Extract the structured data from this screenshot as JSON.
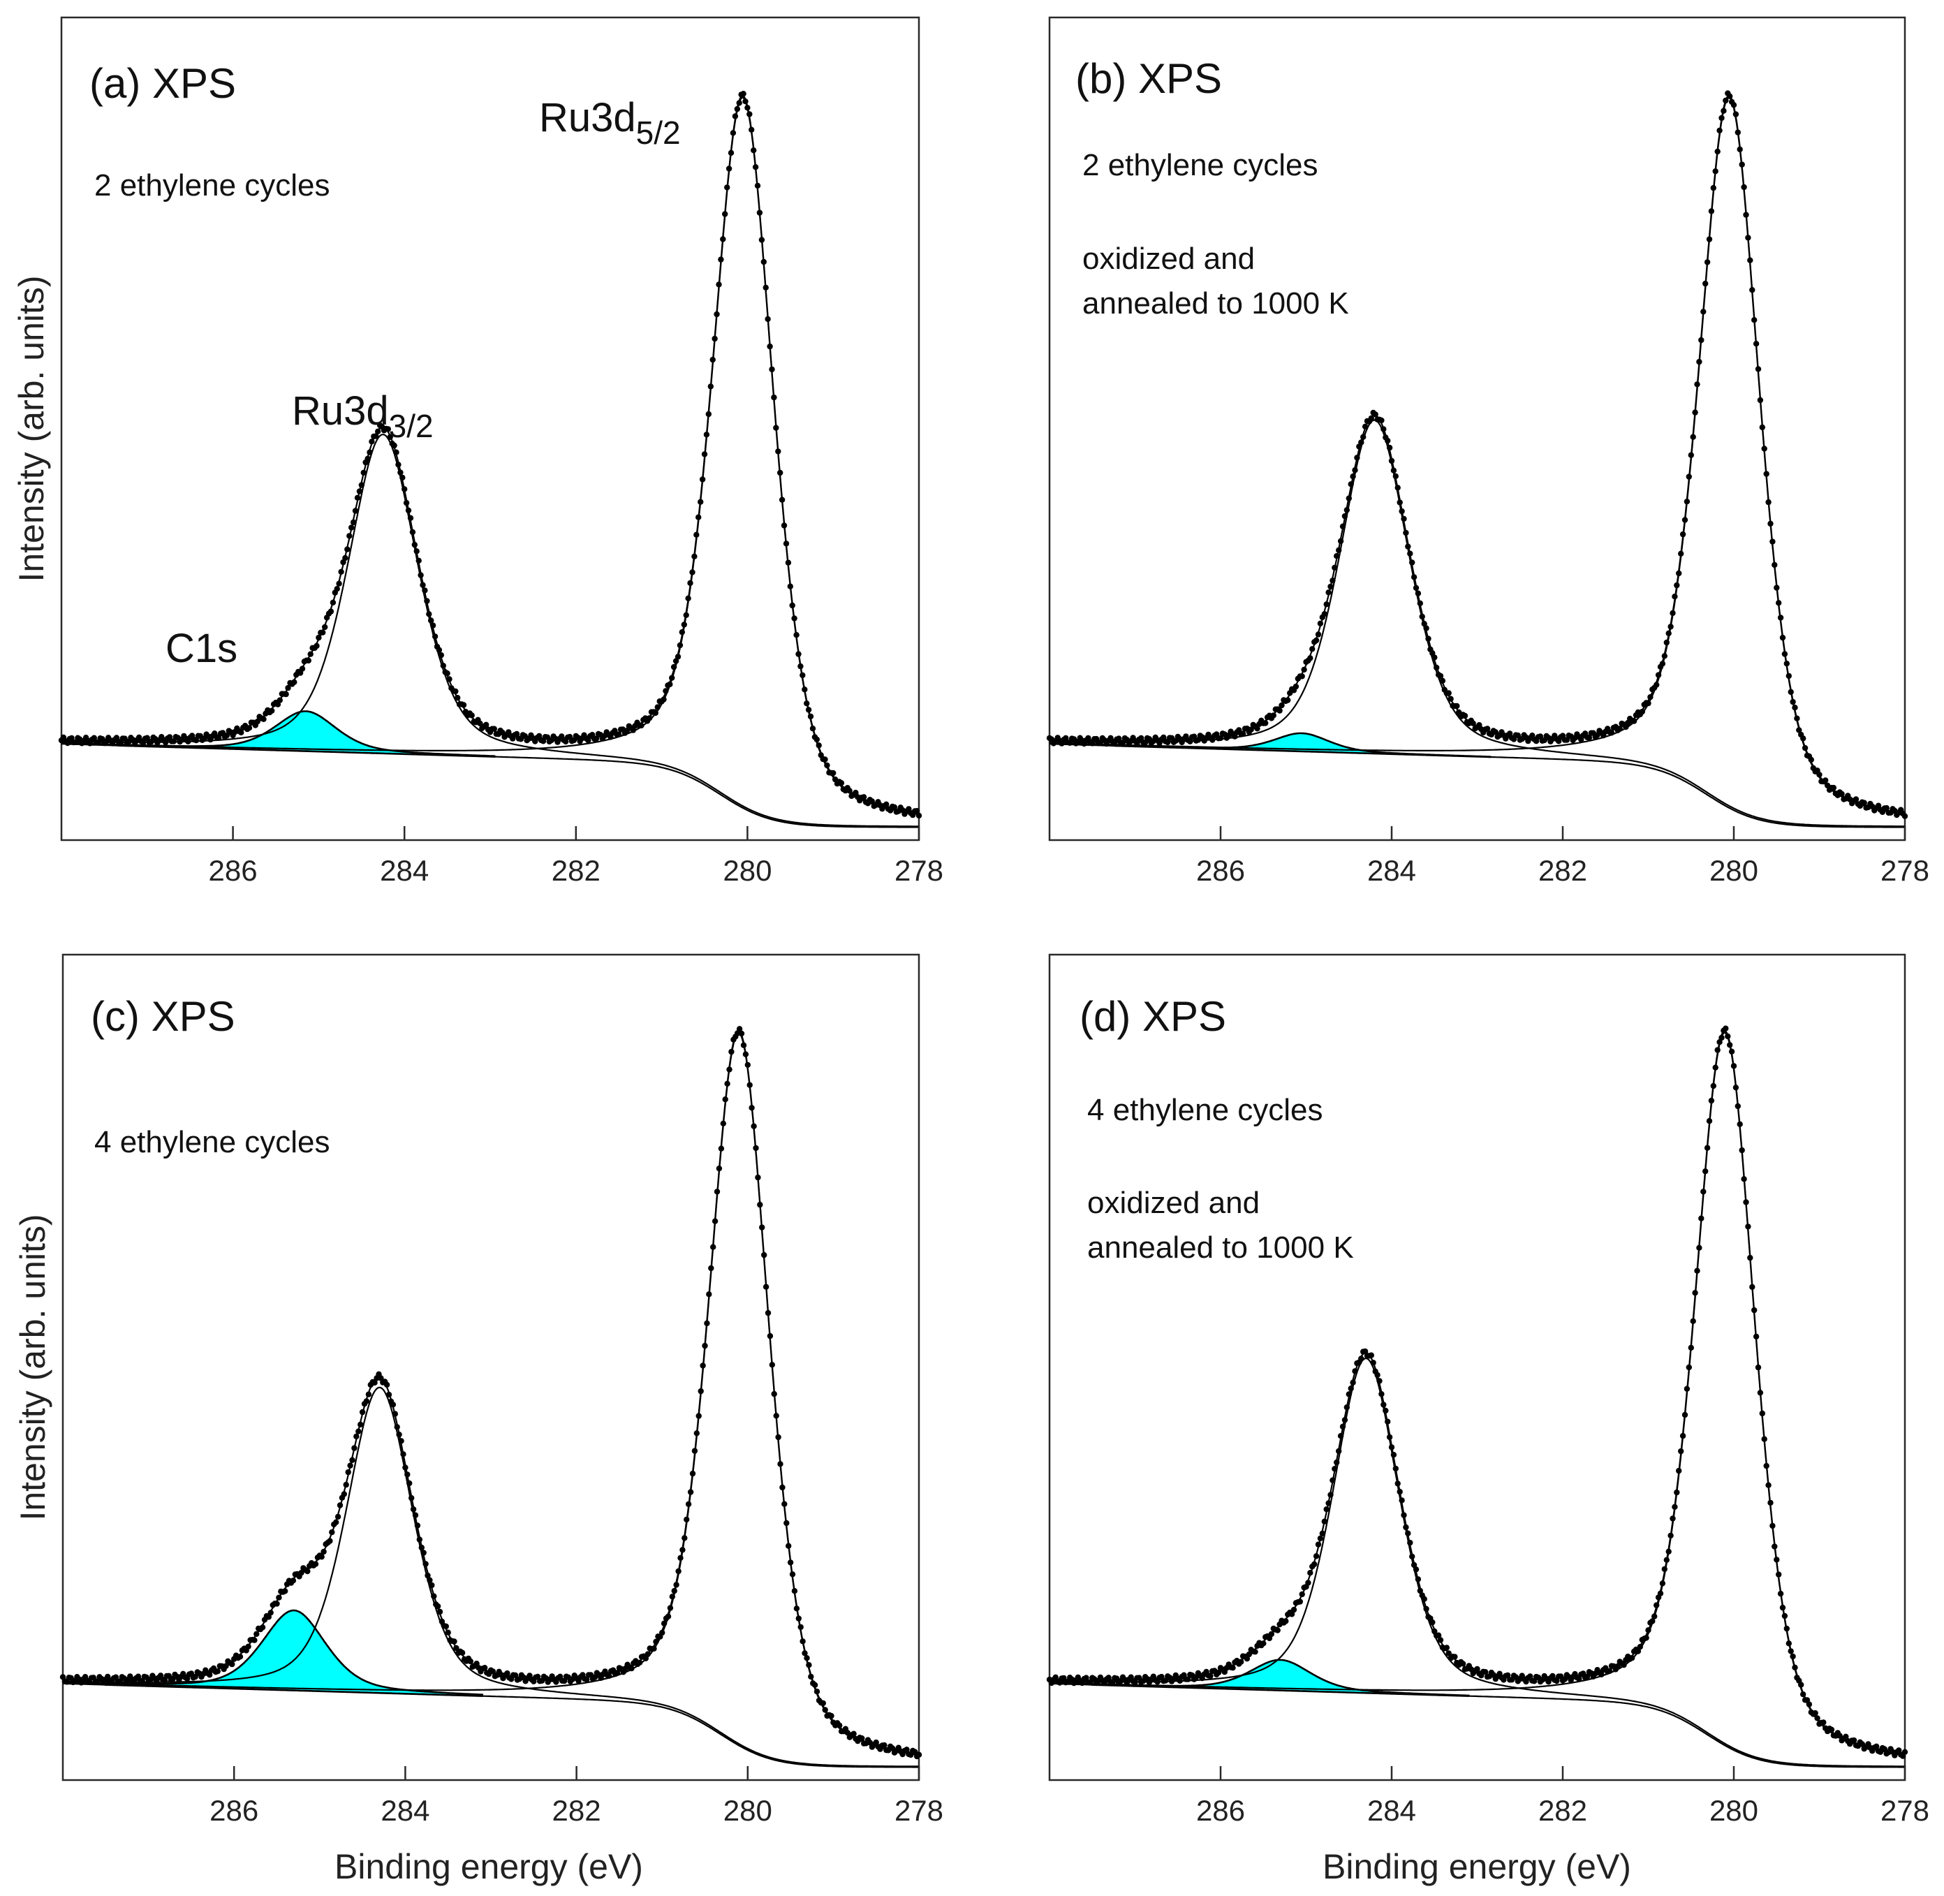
{
  "figure": {
    "ylabel": "Intensity (arb. units)",
    "xlabel": "Binding energy (eV)",
    "fill_color": "#00ffff",
    "point_color": "#000000"
  },
  "chart_data": [
    {
      "type": "line",
      "title": "(a)  XPS",
      "annotations": [
        "2 ethylene cycles"
      ],
      "peak_labels": [
        {
          "base": "Ru3d",
          "sub": "5/2"
        },
        {
          "base": "Ru3d",
          "sub": "3/2"
        },
        {
          "base": "C1s",
          "sub": ""
        }
      ],
      "xlabel": "",
      "ylabel": "Intensity (arb. units)",
      "x_reversed": true,
      "xlim": [
        288.0,
        278.0
      ],
      "ylim": [
        0,
        1.05
      ],
      "xticks": [
        286,
        284,
        282,
        280,
        278
      ],
      "xtick_labels": [
        "286",
        "284",
        "282",
        "280",
        "278"
      ],
      "components": {
        "ru52": {
          "center": 280.05,
          "height": 0.98,
          "width": 0.42
        },
        "ru32": {
          "center": 284.25,
          "height": 0.44,
          "width": 0.48
        },
        "c1s": {
          "center": 285.15,
          "height": 0.055,
          "width": 0.42
        },
        "background": {
          "low": 0.012,
          "high": 0.1,
          "step_center": 280.3,
          "step_width": 0.3,
          "slope": 0.0035
        }
      }
    },
    {
      "type": "line",
      "title": "(b)  XPS",
      "annotations": [
        "2 ethylene cycles",
        "oxidized and",
        "annealed to 1000 K"
      ],
      "peak_labels": [],
      "xlabel": "",
      "ylabel": "",
      "x_reversed": true,
      "xlim": [
        288.0,
        278.0
      ],
      "ylim": [
        0,
        1.05
      ],
      "xticks": [
        286,
        284,
        282,
        280,
        278
      ],
      "xtick_labels": [
        "286",
        "284",
        "282",
        "280",
        "278"
      ],
      "components": {
        "ru52": {
          "center": 280.05,
          "height": 0.98,
          "width": 0.42
        },
        "ru32": {
          "center": 284.2,
          "height": 0.46,
          "width": 0.48
        },
        "c1s": {
          "center": 285.05,
          "height": 0.025,
          "width": 0.38
        },
        "background": {
          "low": 0.012,
          "high": 0.1,
          "step_center": 280.3,
          "step_width": 0.3,
          "slope": 0.0035
        }
      }
    },
    {
      "type": "line",
      "title": "(c)  XPS",
      "annotations": [
        "4 ethylene cycles"
      ],
      "peak_labels": [],
      "xlabel": "Binding energy (eV)",
      "ylabel": "Intensity (arb. units)",
      "x_reversed": true,
      "xlim": [
        288.0,
        278.0
      ],
      "ylim": [
        0,
        1.05
      ],
      "xticks": [
        286,
        284,
        282,
        280,
        278
      ],
      "xtick_labels": [
        "286",
        "284",
        "282",
        "280",
        "278"
      ],
      "components": {
        "ru52": {
          "center": 280.1,
          "height": 0.98,
          "width": 0.42
        },
        "ru32": {
          "center": 284.3,
          "height": 0.42,
          "width": 0.46
        },
        "c1s": {
          "center": 285.3,
          "height": 0.11,
          "width": 0.44
        },
        "background": {
          "low": 0.012,
          "high": 0.1,
          "step_center": 280.3,
          "step_width": 0.3,
          "slope": 0.0035
        }
      }
    },
    {
      "type": "line",
      "title": "(d)  XPS",
      "annotations": [
        "4 ethylene cycles",
        "oxidized and",
        "annealed to 1000 K"
      ],
      "peak_labels": [],
      "xlabel": "Binding energy (eV)",
      "ylabel": "",
      "x_reversed": true,
      "xlim": [
        288.0,
        278.0
      ],
      "ylim": [
        0,
        1.05
      ],
      "xticks": [
        286,
        284,
        282,
        280,
        278
      ],
      "xtick_labels": [
        "286",
        "284",
        "282",
        "280",
        "278"
      ],
      "components": {
        "ru52": {
          "center": 280.1,
          "height": 0.98,
          "width": 0.42
        },
        "ru32": {
          "center": 284.3,
          "height": 0.46,
          "width": 0.46
        },
        "c1s": {
          "center": 285.3,
          "height": 0.042,
          "width": 0.42
        },
        "background": {
          "low": 0.012,
          "high": 0.1,
          "step_center": 280.3,
          "step_width": 0.3,
          "slope": 0.0035
        }
      }
    }
  ]
}
